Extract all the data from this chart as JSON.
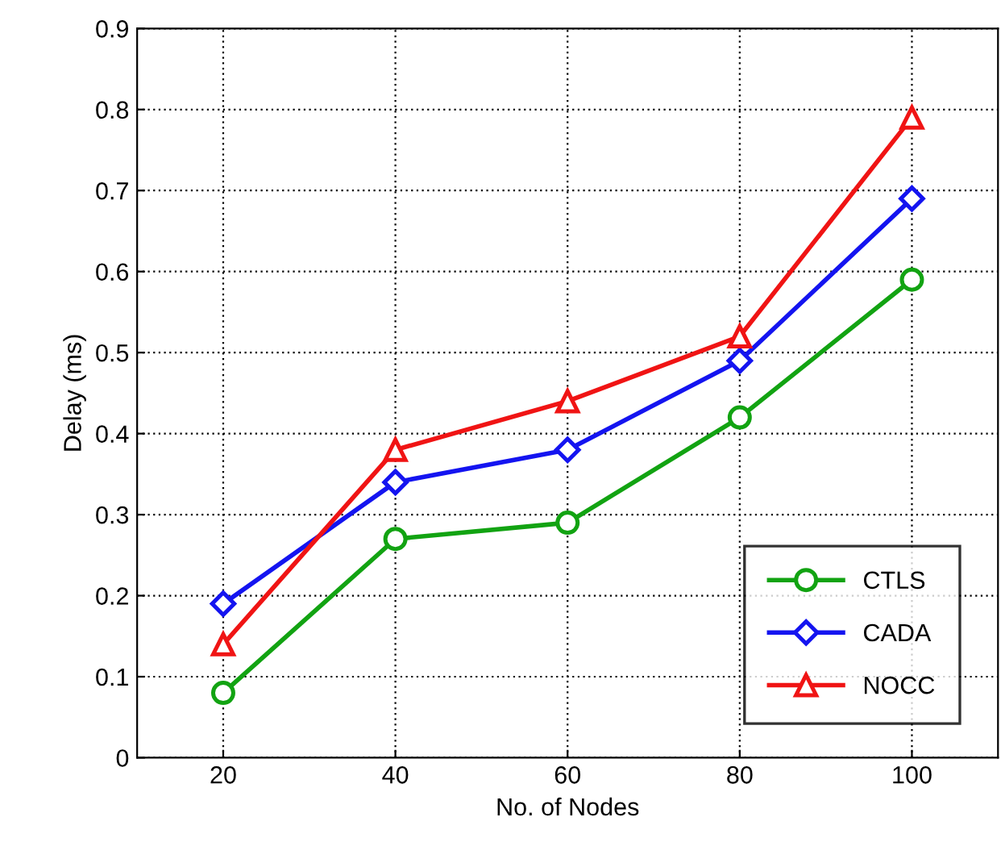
{
  "chart_data": {
    "type": "line",
    "xlabel": "No. of Nodes",
    "ylabel": "Delay (ms)",
    "x": [
      20,
      40,
      60,
      80,
      100
    ],
    "series": [
      {
        "name": "CTLS",
        "color": "#12a312",
        "marker": "circle",
        "values": [
          0.08,
          0.27,
          0.29,
          0.42,
          0.59
        ]
      },
      {
        "name": "CADA",
        "color": "#1414f0",
        "marker": "diamond",
        "values": [
          0.19,
          0.34,
          0.38,
          0.49,
          0.69
        ]
      },
      {
        "name": "NOCC",
        "color": "#f01414",
        "marker": "triangle",
        "values": [
          0.14,
          0.38,
          0.44,
          0.52,
          0.79
        ]
      }
    ],
    "xlim": [
      10,
      110
    ],
    "xticks": [
      20,
      40,
      60,
      80,
      100
    ],
    "ylim": [
      0,
      0.9
    ],
    "yticks": [
      0,
      0.1,
      0.2,
      0.3,
      0.4,
      0.5,
      0.6,
      0.7,
      0.8,
      0.9
    ],
    "grid": true,
    "legend": "bottom right",
    "line_style": "solid"
  }
}
